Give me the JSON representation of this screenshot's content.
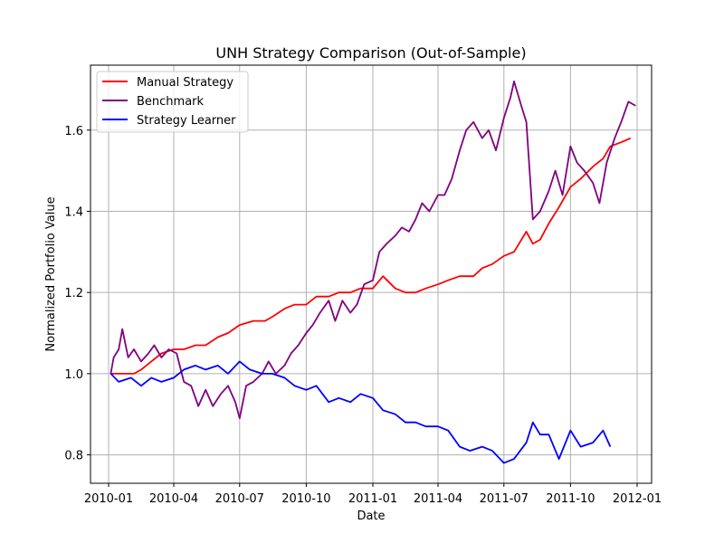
{
  "chart_data": {
    "type": "line",
    "title": "UNH Strategy Comparison (Out-of-Sample)",
    "xlabel": "Date",
    "ylabel": "Normalized Portfolio Value",
    "xlim": [
      "2009-12-07",
      "2012-01-21"
    ],
    "ylim": [
      0.73,
      1.76
    ],
    "x_ticks": [
      "2010-01",
      "2010-04",
      "2010-07",
      "2010-10",
      "2011-01",
      "2011-04",
      "2011-07",
      "2011-10",
      "2012-01"
    ],
    "y_ticks": [
      0.8,
      1.0,
      1.2,
      1.4,
      1.6
    ],
    "y_tick_labels": [
      "0.8",
      "1.0",
      "1.2",
      "1.4",
      "1.6"
    ],
    "grid": true,
    "legend_position": "top-left",
    "series": [
      {
        "name": "Manual Strategy",
        "color": "#ff0000",
        "points": [
          [
            "2010-01-04",
            1.0
          ],
          [
            "2010-01-20",
            1.0
          ],
          [
            "2010-02-05",
            1.0
          ],
          [
            "2010-02-15",
            1.01
          ],
          [
            "2010-03-01",
            1.03
          ],
          [
            "2010-03-15",
            1.05
          ],
          [
            "2010-04-01",
            1.06
          ],
          [
            "2010-04-15",
            1.06
          ],
          [
            "2010-05-01",
            1.07
          ],
          [
            "2010-05-15",
            1.07
          ],
          [
            "2010-06-01",
            1.09
          ],
          [
            "2010-06-15",
            1.1
          ],
          [
            "2010-07-01",
            1.12
          ],
          [
            "2010-07-20",
            1.13
          ],
          [
            "2010-08-05",
            1.13
          ],
          [
            "2010-08-15",
            1.14
          ],
          [
            "2010-09-01",
            1.16
          ],
          [
            "2010-09-15",
            1.17
          ],
          [
            "2010-10-01",
            1.17
          ],
          [
            "2010-10-15",
            1.19
          ],
          [
            "2010-11-01",
            1.19
          ],
          [
            "2010-11-15",
            1.2
          ],
          [
            "2010-12-01",
            1.2
          ],
          [
            "2010-12-15",
            1.21
          ],
          [
            "2011-01-01",
            1.21
          ],
          [
            "2011-01-15",
            1.24
          ],
          [
            "2011-02-01",
            1.21
          ],
          [
            "2011-02-15",
            1.2
          ],
          [
            "2011-03-01",
            1.2
          ],
          [
            "2011-03-15",
            1.21
          ],
          [
            "2011-04-01",
            1.22
          ],
          [
            "2011-04-15",
            1.23
          ],
          [
            "2011-05-01",
            1.24
          ],
          [
            "2011-05-20",
            1.24
          ],
          [
            "2011-06-01",
            1.26
          ],
          [
            "2011-06-15",
            1.27
          ],
          [
            "2011-07-01",
            1.29
          ],
          [
            "2011-07-15",
            1.3
          ],
          [
            "2011-08-01",
            1.35
          ],
          [
            "2011-08-10",
            1.32
          ],
          [
            "2011-08-20",
            1.33
          ],
          [
            "2011-09-01",
            1.37
          ],
          [
            "2011-09-15",
            1.41
          ],
          [
            "2011-10-01",
            1.46
          ],
          [
            "2011-10-15",
            1.48
          ],
          [
            "2011-11-01",
            1.51
          ],
          [
            "2011-11-15",
            1.53
          ],
          [
            "2011-11-25",
            1.56
          ],
          [
            "2011-12-10",
            1.57
          ],
          [
            "2011-12-23",
            1.58
          ]
        ]
      },
      {
        "name": "Benchmark",
        "color": "#800080",
        "points": [
          [
            "2010-01-04",
            1.0
          ],
          [
            "2010-01-08",
            1.04
          ],
          [
            "2010-01-15",
            1.06
          ],
          [
            "2010-01-20",
            1.11
          ],
          [
            "2010-01-28",
            1.04
          ],
          [
            "2010-02-05",
            1.06
          ],
          [
            "2010-02-15",
            1.03
          ],
          [
            "2010-02-25",
            1.05
          ],
          [
            "2010-03-05",
            1.07
          ],
          [
            "2010-03-15",
            1.04
          ],
          [
            "2010-03-25",
            1.06
          ],
          [
            "2010-04-05",
            1.05
          ],
          [
            "2010-04-15",
            0.98
          ],
          [
            "2010-04-25",
            0.97
          ],
          [
            "2010-05-05",
            0.92
          ],
          [
            "2010-05-15",
            0.96
          ],
          [
            "2010-05-25",
            0.92
          ],
          [
            "2010-06-05",
            0.95
          ],
          [
            "2010-06-15",
            0.97
          ],
          [
            "2010-06-25",
            0.93
          ],
          [
            "2010-07-01",
            0.89
          ],
          [
            "2010-07-10",
            0.97
          ],
          [
            "2010-07-20",
            0.98
          ],
          [
            "2010-08-01",
            1.0
          ],
          [
            "2010-08-10",
            1.03
          ],
          [
            "2010-08-20",
            1.0
          ],
          [
            "2010-09-01",
            1.02
          ],
          [
            "2010-09-10",
            1.05
          ],
          [
            "2010-09-20",
            1.07
          ],
          [
            "2010-10-01",
            1.1
          ],
          [
            "2010-10-10",
            1.12
          ],
          [
            "2010-10-20",
            1.15
          ],
          [
            "2010-11-01",
            1.18
          ],
          [
            "2010-11-10",
            1.13
          ],
          [
            "2010-11-20",
            1.18
          ],
          [
            "2010-12-01",
            1.15
          ],
          [
            "2010-12-10",
            1.17
          ],
          [
            "2010-12-20",
            1.22
          ],
          [
            "2011-01-01",
            1.23
          ],
          [
            "2011-01-10",
            1.3
          ],
          [
            "2011-01-20",
            1.32
          ],
          [
            "2011-02-01",
            1.34
          ],
          [
            "2011-02-10",
            1.36
          ],
          [
            "2011-02-20",
            1.35
          ],
          [
            "2011-03-01",
            1.38
          ],
          [
            "2011-03-10",
            1.42
          ],
          [
            "2011-03-20",
            1.4
          ],
          [
            "2011-04-01",
            1.44
          ],
          [
            "2011-04-10",
            1.44
          ],
          [
            "2011-04-20",
            1.48
          ],
          [
            "2011-05-01",
            1.55
          ],
          [
            "2011-05-10",
            1.6
          ],
          [
            "2011-05-20",
            1.62
          ],
          [
            "2011-06-01",
            1.58
          ],
          [
            "2011-06-10",
            1.6
          ],
          [
            "2011-06-20",
            1.55
          ],
          [
            "2011-07-01",
            1.63
          ],
          [
            "2011-07-10",
            1.68
          ],
          [
            "2011-07-15",
            1.72
          ],
          [
            "2011-07-25",
            1.66
          ],
          [
            "2011-08-01",
            1.62
          ],
          [
            "2011-08-10",
            1.38
          ],
          [
            "2011-08-20",
            1.4
          ],
          [
            "2011-09-01",
            1.45
          ],
          [
            "2011-09-10",
            1.5
          ],
          [
            "2011-09-20",
            1.44
          ],
          [
            "2011-10-01",
            1.56
          ],
          [
            "2011-10-10",
            1.52
          ],
          [
            "2011-10-20",
            1.5
          ],
          [
            "2011-11-01",
            1.47
          ],
          [
            "2011-11-10",
            1.42
          ],
          [
            "2011-11-20",
            1.52
          ],
          [
            "2011-12-01",
            1.58
          ],
          [
            "2011-12-10",
            1.62
          ],
          [
            "2011-12-20",
            1.67
          ],
          [
            "2011-12-30",
            1.66
          ]
        ]
      },
      {
        "name": "Strategy Learner",
        "color": "#0000ff",
        "points": [
          [
            "2010-01-04",
            1.0
          ],
          [
            "2010-01-15",
            0.98
          ],
          [
            "2010-02-01",
            0.99
          ],
          [
            "2010-02-15",
            0.97
          ],
          [
            "2010-03-01",
            0.99
          ],
          [
            "2010-03-15",
            0.98
          ],
          [
            "2010-04-01",
            0.99
          ],
          [
            "2010-04-15",
            1.01
          ],
          [
            "2010-05-01",
            1.02
          ],
          [
            "2010-05-15",
            1.01
          ],
          [
            "2010-06-01",
            1.02
          ],
          [
            "2010-06-15",
            1.0
          ],
          [
            "2010-07-01",
            1.03
          ],
          [
            "2010-07-15",
            1.01
          ],
          [
            "2010-08-01",
            1.0
          ],
          [
            "2010-08-15",
            1.0
          ],
          [
            "2010-09-01",
            0.99
          ],
          [
            "2010-09-15",
            0.97
          ],
          [
            "2010-10-01",
            0.96
          ],
          [
            "2010-10-15",
            0.97
          ],
          [
            "2010-11-01",
            0.93
          ],
          [
            "2010-11-15",
            0.94
          ],
          [
            "2010-12-01",
            0.93
          ],
          [
            "2010-12-15",
            0.95
          ],
          [
            "2011-01-01",
            0.94
          ],
          [
            "2011-01-15",
            0.91
          ],
          [
            "2011-02-01",
            0.9
          ],
          [
            "2011-02-15",
            0.88
          ],
          [
            "2011-03-01",
            0.88
          ],
          [
            "2011-03-15",
            0.87
          ],
          [
            "2011-04-01",
            0.87
          ],
          [
            "2011-04-15",
            0.86
          ],
          [
            "2011-05-01",
            0.82
          ],
          [
            "2011-05-15",
            0.81
          ],
          [
            "2011-06-01",
            0.82
          ],
          [
            "2011-06-15",
            0.81
          ],
          [
            "2011-07-01",
            0.78
          ],
          [
            "2011-07-15",
            0.79
          ],
          [
            "2011-08-01",
            0.83
          ],
          [
            "2011-08-10",
            0.88
          ],
          [
            "2011-08-20",
            0.85
          ],
          [
            "2011-09-01",
            0.85
          ],
          [
            "2011-09-15",
            0.79
          ],
          [
            "2011-10-01",
            0.86
          ],
          [
            "2011-10-15",
            0.82
          ],
          [
            "2011-11-01",
            0.83
          ],
          [
            "2011-11-15",
            0.86
          ],
          [
            "2011-11-25",
            0.82
          ]
        ]
      }
    ]
  }
}
